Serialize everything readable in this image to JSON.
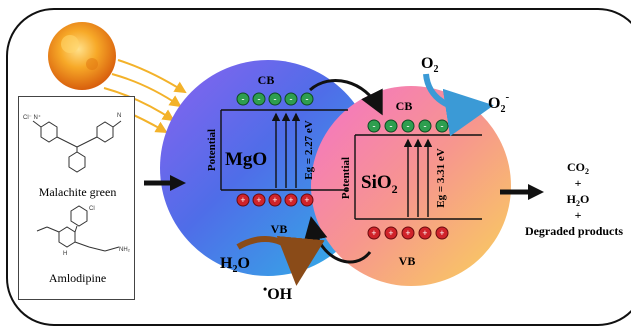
{
  "left_panel": {
    "compound1": "Malachite green",
    "compound2": "Amlodipine"
  },
  "mgo": {
    "name": "MgO",
    "cb": "CB",
    "vb": "VB",
    "axis": "Potential",
    "eg": "Eg = 2.27 eV"
  },
  "sio2": {
    "name_main": "SiO",
    "name_sub": "2",
    "cb": "CB",
    "vb": "VB",
    "axis": "Potential",
    "eg": "Eg = 3.31 eV"
  },
  "species": {
    "o2_main": "O",
    "o2_sub": "2",
    "superoxide_main": "O",
    "superoxide_sub": "2",
    "superoxide_sup": "-",
    "h2o_a": "H",
    "h2o_sub": "2",
    "h2o_b": "O",
    "oh_dot": "•",
    "oh": "OH",
    "electron_sign": "-",
    "hole_sign": "+"
  },
  "products": {
    "co2_main": "CO",
    "co2_sub": "2",
    "plus": "+",
    "h2o_a": "H",
    "h2o_sub": "2",
    "h2o_b": "O",
    "degraded": "Degraded products"
  },
  "colors": {
    "electron": "#2e9e4f",
    "hole": "#d0232a",
    "sun": "#f39a1c",
    "o2_arrow": "#3b9ad6",
    "oh_arrow": "#8a4b18"
  }
}
